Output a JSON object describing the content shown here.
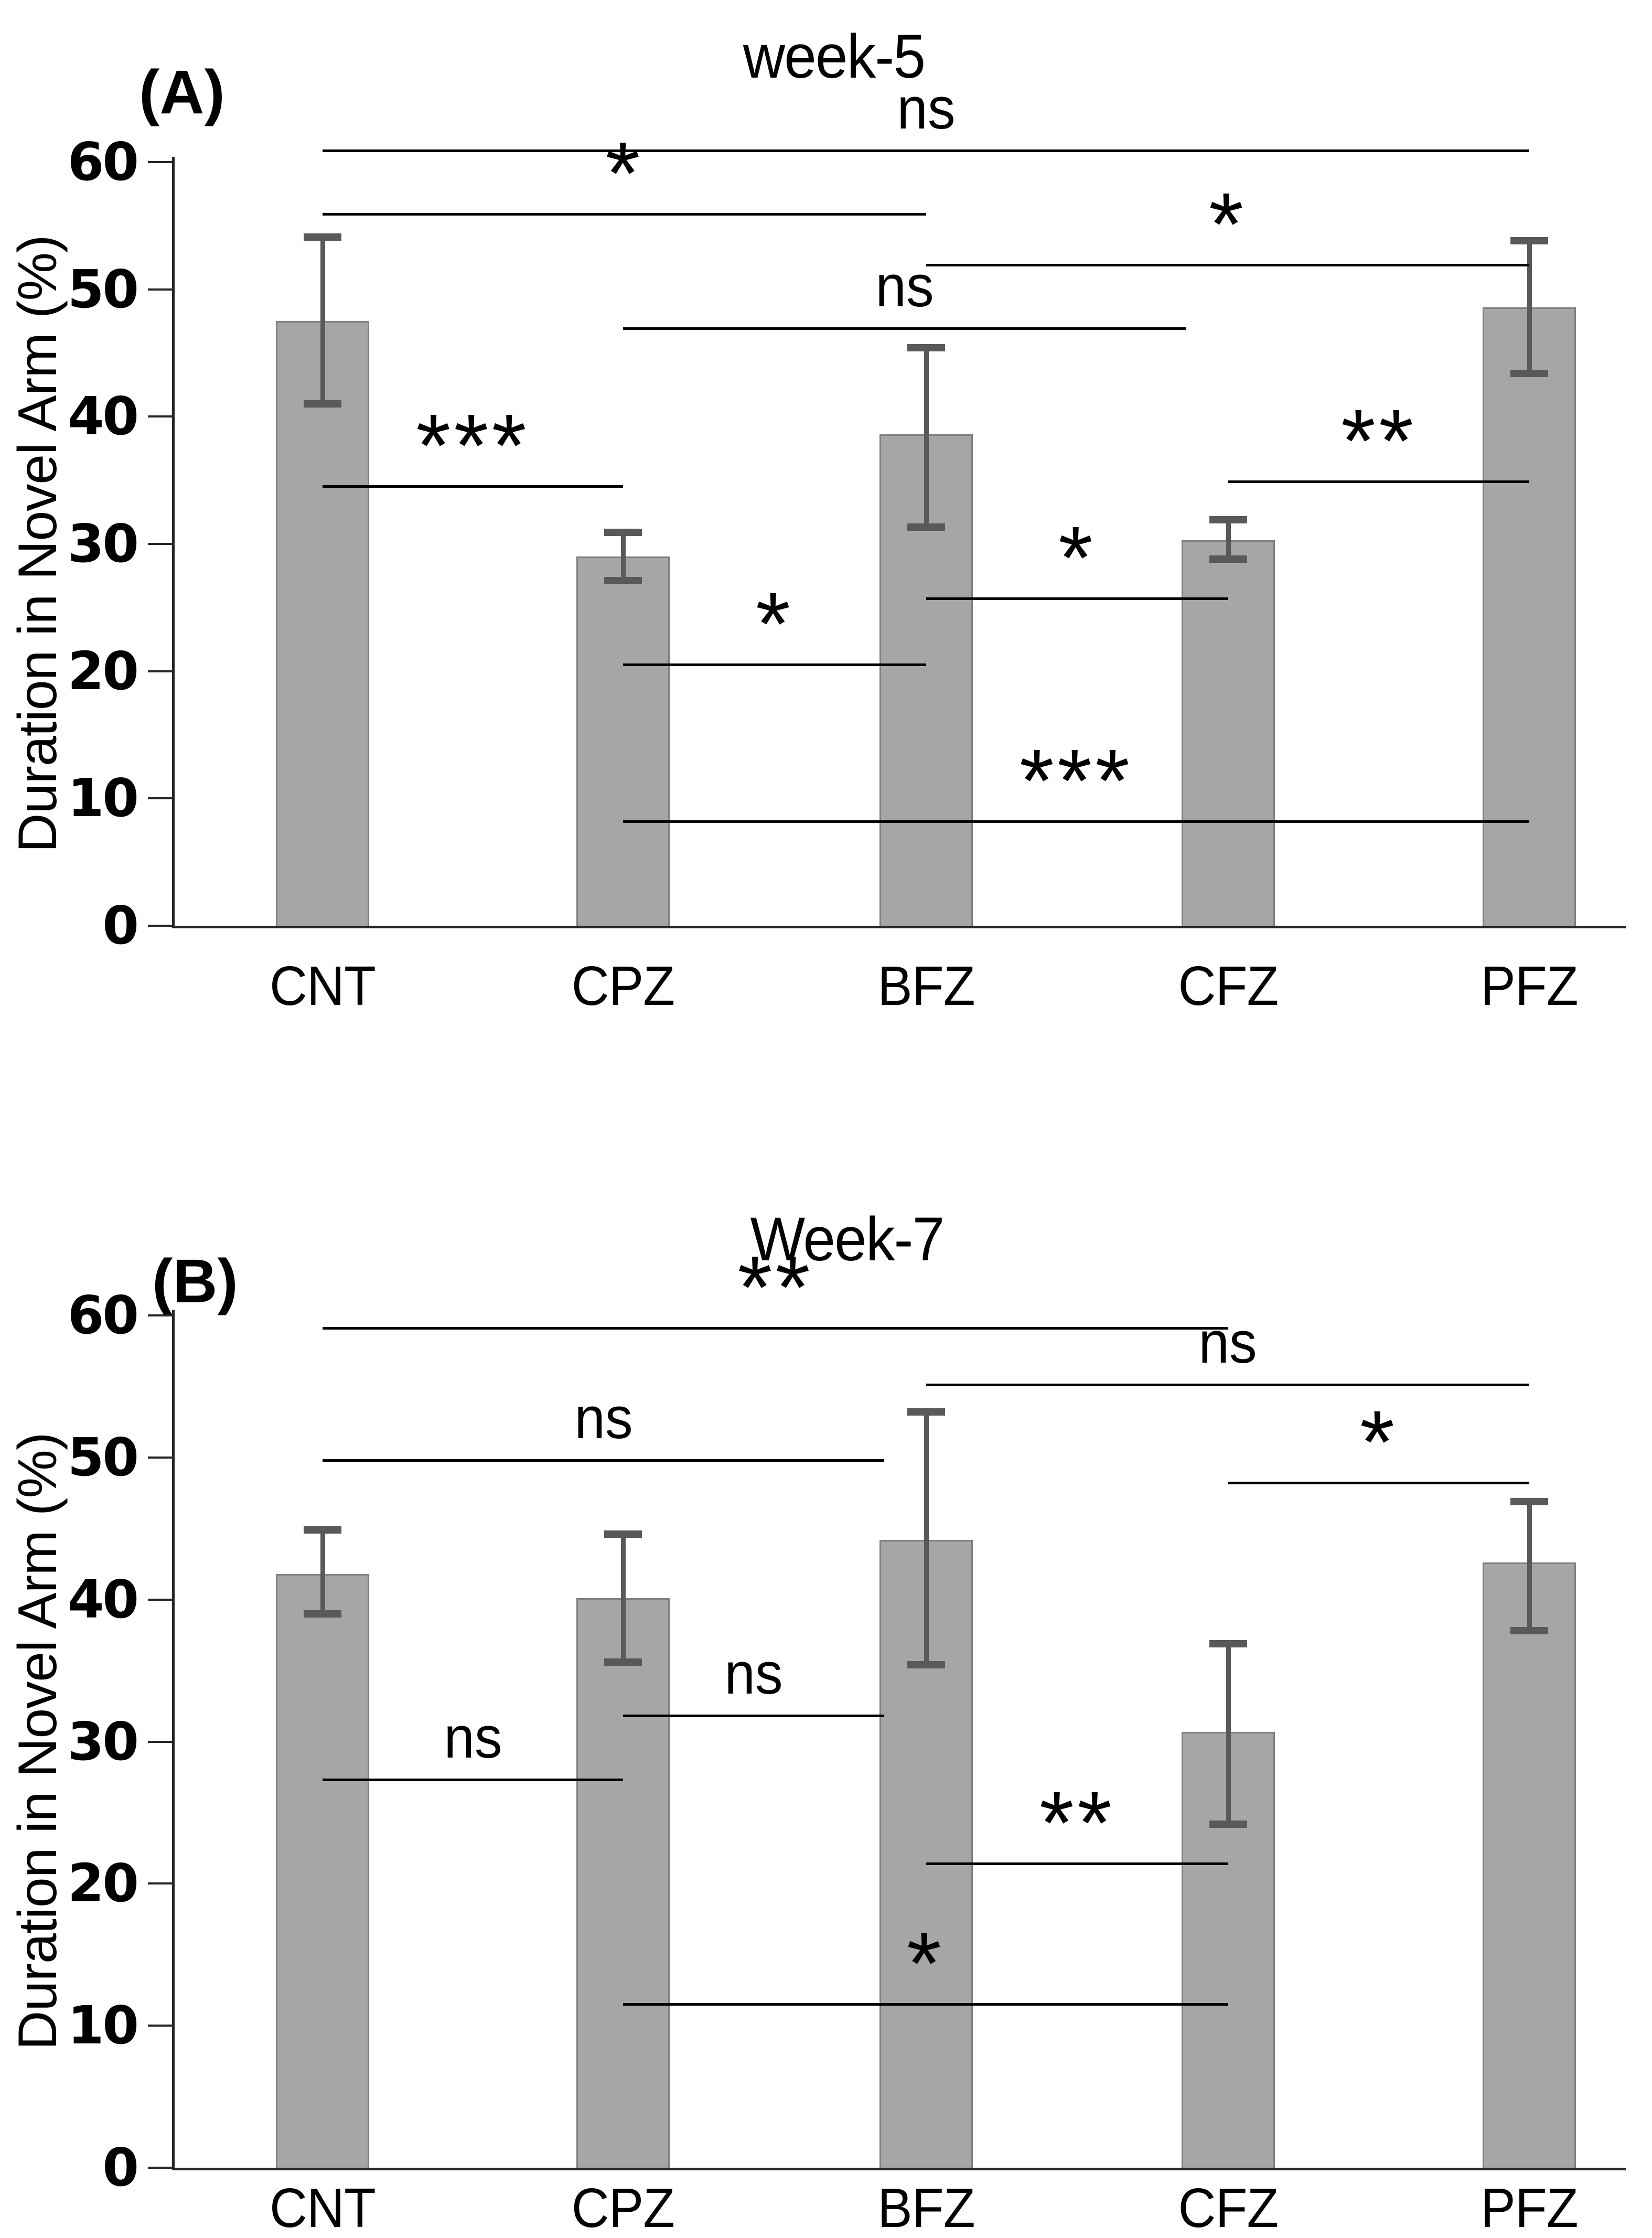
{
  "figure": {
    "background": "#ffffff",
    "bar_color": "#a6a6a6",
    "bar_border_color": "#7f7f7f",
    "error_bar_color": "#595959",
    "sig_line_color": "#000000",
    "axis_color": "#262626",
    "text_color": "#000000"
  },
  "chart_data": [
    {
      "type": "bar",
      "panel_label": "(A)",
      "title": "week-5",
      "ylabel": "Duration in Novel Arm (%)",
      "xlabel": "",
      "ylim": [
        0,
        60
      ],
      "yticks": [
        0,
        10,
        20,
        30,
        40,
        50,
        60
      ],
      "grid": false,
      "legend": "none",
      "categories": [
        "CNT",
        "CPZ",
        "BFZ",
        "CFZ",
        "PFZ"
      ],
      "values": [
        47.5,
        29.0,
        38.6,
        30.3,
        48.6
      ],
      "error_low": [
        41.0,
        27.1,
        31.3,
        28.8,
        43.4
      ],
      "error_high": [
        54.1,
        30.9,
        45.4,
        31.9,
        53.8
      ],
      "significance": [
        {
          "label": "ns",
          "from": 0,
          "to": 4,
          "y": 61.0,
          "to_edge": false
        },
        {
          "label": "*",
          "from": 0,
          "to": 2,
          "y": 56.0,
          "to_edge": false
        },
        {
          "label": "*",
          "from": 2,
          "to": 4,
          "y": 52.0,
          "to_edge": false
        },
        {
          "label": "ns",
          "from": 1,
          "to": 3,
          "y": 47.0,
          "to_edge": true
        },
        {
          "label": "***",
          "from": 0,
          "to": 1,
          "y": 34.6,
          "to_edge": false
        },
        {
          "label": "**",
          "from": 3,
          "to": 4,
          "y": 35.0,
          "to_edge": false
        },
        {
          "label": "*",
          "from": 2,
          "to": 3,
          "y": 25.8,
          "to_edge": false
        },
        {
          "label": "*",
          "from": 1,
          "to": 2,
          "y": 20.6,
          "to_edge": false
        },
        {
          "label": "***",
          "from": 1,
          "to": 4,
          "y": 8.3,
          "to_edge": false
        }
      ]
    },
    {
      "type": "bar",
      "panel_label": "(B)",
      "title": "Week-7",
      "ylabel": "Duration in Novel Arm (%)",
      "xlabel": "",
      "ylim": [
        0,
        60
      ],
      "yticks": [
        0,
        10,
        20,
        30,
        40,
        50,
        60
      ],
      "grid": false,
      "legend": "none",
      "categories": [
        "CNT",
        "CPZ",
        "BFZ",
        "CFZ",
        "PFZ"
      ],
      "values": [
        41.8,
        40.1,
        44.2,
        30.7,
        42.6
      ],
      "error_low": [
        39.0,
        35.6,
        35.4,
        24.2,
        37.8
      ],
      "error_high": [
        44.9,
        44.6,
        53.2,
        36.9,
        46.9
      ],
      "significance": [
        {
          "label": "**",
          "from": 0,
          "to": 3,
          "y": 59.2,
          "to_edge": false
        },
        {
          "label": "ns",
          "from": 2,
          "to": 4,
          "y": 55.2,
          "to_edge": false
        },
        {
          "label": "ns",
          "from": 0,
          "to": 2,
          "y": 49.9,
          "to_edge": true
        },
        {
          "label": "*",
          "from": 3,
          "to": 4,
          "y": 48.3,
          "to_edge": false
        },
        {
          "label": "ns",
          "from": 1,
          "to": 2,
          "y": 31.9,
          "to_edge": true
        },
        {
          "label": "ns",
          "from": 0,
          "to": 1,
          "y": 27.4,
          "to_edge": false
        },
        {
          "label": "**",
          "from": 2,
          "to": 3,
          "y": 21.5,
          "to_edge": false
        },
        {
          "label": "*",
          "from": 1,
          "to": 3,
          "y": 11.6,
          "to_edge": false
        }
      ]
    }
  ]
}
